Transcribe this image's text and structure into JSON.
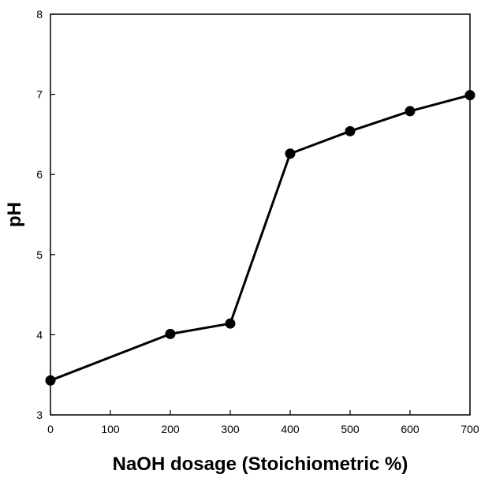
{
  "chart_data": {
    "type": "line",
    "title": "",
    "xlabel": "NaOH dosage (Stoichiometric %)",
    "ylabel": "pH",
    "xlim": [
      0,
      700
    ],
    "ylim": [
      3,
      8
    ],
    "x_ticks": [
      0,
      100,
      200,
      300,
      400,
      500,
      600,
      700
    ],
    "y_ticks": [
      3,
      4,
      5,
      6,
      7,
      8
    ],
    "grid": false,
    "legend": "none",
    "series": [
      {
        "x": [
          0,
          200,
          300,
          400,
          500,
          600,
          700
        ],
        "y": [
          3.43,
          4.01,
          4.14,
          6.26,
          6.54,
          6.79,
          6.99
        ],
        "color": "#000000",
        "marker": "circle"
      }
    ]
  }
}
